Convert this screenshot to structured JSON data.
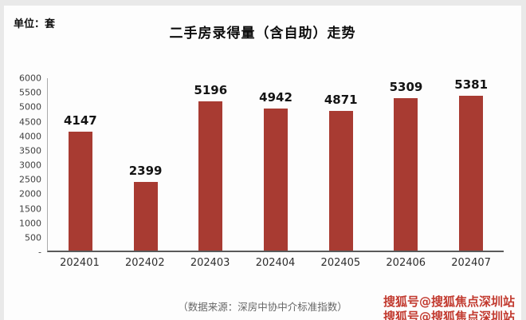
{
  "page": {
    "unit_label": "单位：套",
    "title": "二手房录得量（含自助）走势",
    "source_caption": "（数据来源：深房中协中介标准指数）",
    "watermark_line1": "搜狐号@搜狐焦点深圳站",
    "watermark_line2": "搜狐号@搜狐焦点深圳站"
  },
  "colors": {
    "bar": "#a83b32",
    "watermark": "#c23a2f"
  },
  "chart_data": {
    "type": "bar",
    "title": "二手房录得量（含自助）走势",
    "categories": [
      "202401",
      "202402",
      "202403",
      "202404",
      "202405",
      "202406",
      "202407"
    ],
    "values": [
      4147,
      2399,
      5196,
      4942,
      4871,
      5309,
      5381
    ],
    "unit": "套",
    "xlabel": "",
    "ylabel": "",
    "ylim": [
      0,
      6000
    ],
    "yticks": [
      0,
      500,
      1000,
      1500,
      2000,
      2500,
      3000,
      3500,
      4000,
      4500,
      5000,
      5500,
      6000
    ],
    "ytick_labels": [
      "-",
      "500",
      "1000",
      "1500",
      "2000",
      "2500",
      "3000",
      "3500",
      "4000",
      "4500",
      "5000",
      "5500",
      "6000"
    ],
    "grid": false,
    "legend": false,
    "source": "（数据来源：深房中协中介标准指数）"
  }
}
